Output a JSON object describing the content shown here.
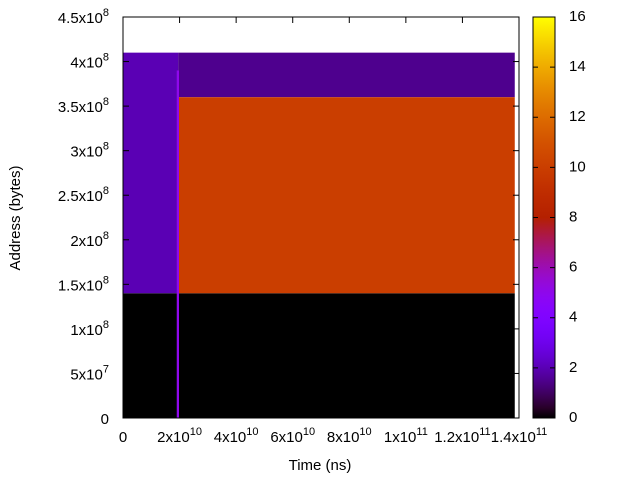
{
  "chart_data": {
    "type": "heatmap",
    "x_label": "Time (ns)",
    "y_label": "Address (bytes)",
    "palette": "gnuplot",
    "xlim": [
      0,
      140000000000
    ],
    "ylim": [
      0,
      450000000
    ],
    "zlim": [
      0,
      16
    ],
    "xticks": [
      0,
      {
        "value": 20000000000,
        "label": "2x10",
        "exponent": "10"
      },
      {
        "value": 40000000000,
        "label": "4x10",
        "exponent": "10"
      },
      {
        "value": 60000000000,
        "label": "6x10",
        "exponent": "10"
      },
      {
        "value": 80000000000,
        "label": "8x10",
        "exponent": "10"
      },
      {
        "value": 100000000000,
        "label": "1x10",
        "exponent": "11"
      },
      {
        "value": 120000000000,
        "label": "1.2x10",
        "exponent": "11"
      },
      {
        "value": 140000000000,
        "label": "1.4x10",
        "exponent": "11"
      }
    ],
    "yticks": [
      0,
      {
        "value": 50000000,
        "label": "5x10",
        "exponent": "7"
      },
      {
        "value": 100000000,
        "label": "1x10",
        "exponent": "8"
      },
      {
        "value": 150000000,
        "label": "1.5x10",
        "exponent": "8"
      },
      {
        "value": 200000000,
        "label": "2x10",
        "exponent": "8"
      },
      {
        "value": 250000000,
        "label": "2.5x10",
        "exponent": "8"
      },
      {
        "value": 300000000,
        "label": "3x10",
        "exponent": "8"
      },
      {
        "value": 350000000,
        "label": "3.5x10",
        "exponent": "8"
      },
      {
        "value": 400000000,
        "label": "4x10",
        "exponent": "8"
      },
      {
        "value": 450000000,
        "label": "4.5x10",
        "exponent": "8"
      }
    ],
    "zticks": [
      0,
      2,
      4,
      6,
      8,
      10,
      12,
      14,
      16
    ],
    "regions": [
      {
        "x0": 0,
        "x1": 138500000000,
        "y0": 0,
        "y1": 140000000,
        "value": 0
      },
      {
        "x0": 0,
        "x1": 19500000000,
        "y0": 140000000,
        "y1": 410000000,
        "value": 2
      },
      {
        "x0": 19500000000,
        "x1": 138500000000,
        "y0": 360000000,
        "y1": 410000000,
        "value": 1.5
      },
      {
        "x0": 19500000000,
        "x1": 138500000000,
        "y0": 140000000,
        "y1": 360000000,
        "value": 10
      },
      {
        "x0": 19000000000,
        "x1": 19800000000,
        "y0": 0,
        "y1": 390000000,
        "value": 5
      }
    ]
  }
}
